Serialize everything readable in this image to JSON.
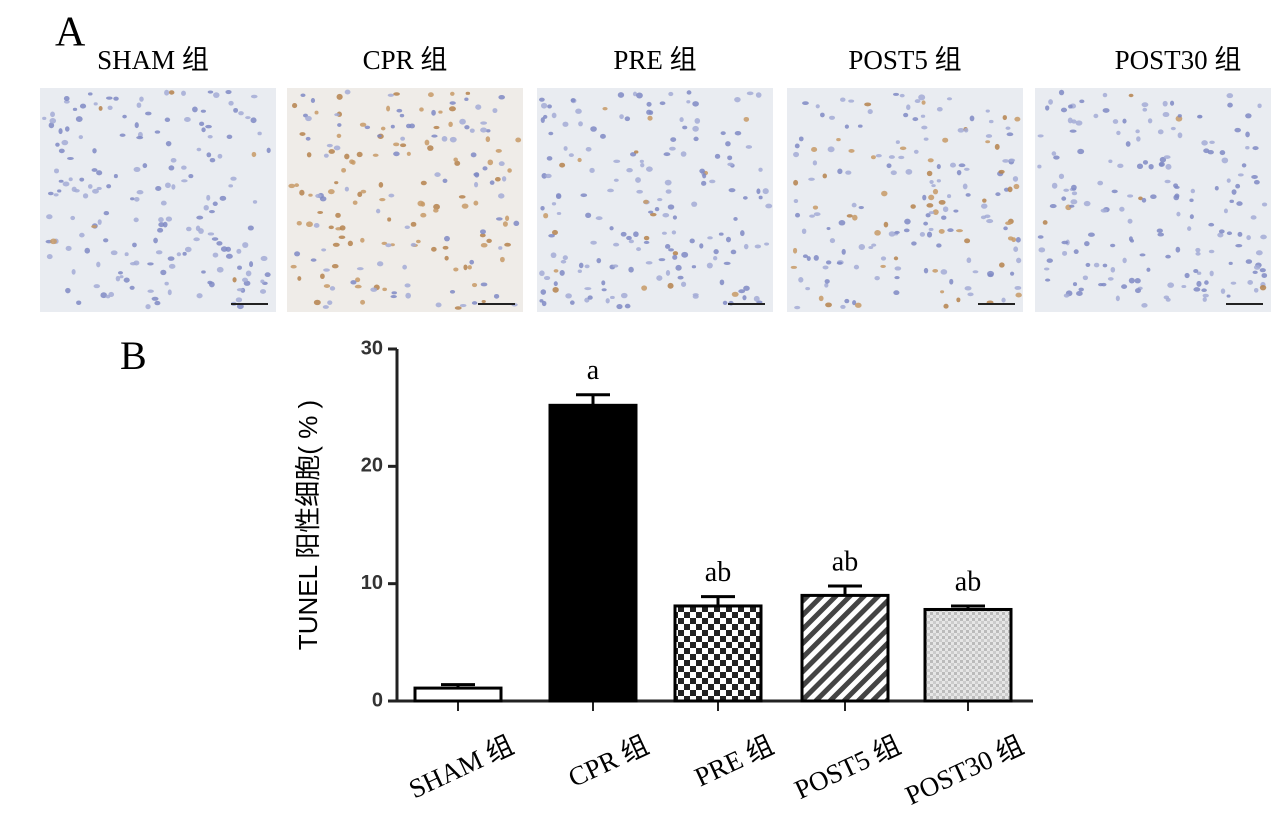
{
  "panel_a": {
    "label": "A",
    "titles": [
      "SHAM 组",
      "CPR 组",
      "PRE 组",
      "POST5 组",
      "POST30 组"
    ]
  },
  "chart_data": {
    "type": "bar",
    "panel_label": "B",
    "y_label": "TUNEL 阳性细胞( % )",
    "categories": [
      "SHAM 组",
      "CPR 组",
      "PRE 组",
      "POST5 组",
      "POST30 组"
    ],
    "values": [
      1.1,
      25.2,
      8.1,
      9.0,
      7.8
    ],
    "errors": [
      0.3,
      0.9,
      0.8,
      0.8,
      0.3
    ],
    "annotations": [
      null,
      "a",
      "ab",
      "ab",
      "ab"
    ],
    "fill_patterns": [
      "white",
      "black",
      "checker",
      "stripes",
      "grid"
    ],
    "ylim": [
      0,
      30
    ],
    "yticks": [
      0,
      10,
      20,
      30
    ]
  }
}
